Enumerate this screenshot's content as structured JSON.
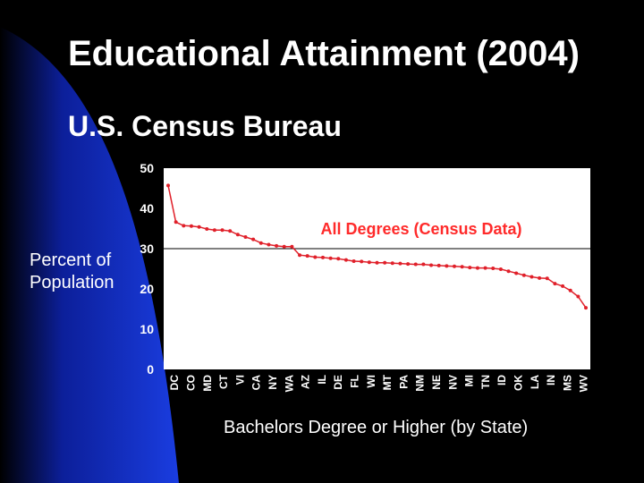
{
  "slide": {
    "title": "Educational Attainment (2004)",
    "subtitle": "U.S. Census Bureau"
  },
  "colors": {
    "background": "#000000",
    "swoosh_blue": "#1030d0",
    "plot_area": "#ffffff",
    "series": "#e0202a",
    "legend_text": "#ff2a2a",
    "axis_text": "#ffffff"
  },
  "chart_data": {
    "type": "line",
    "title": "",
    "ylabel": "Percent of Population",
    "xlabel": "Bachelors Degree or Higher (by State)",
    "ylim": [
      0,
      50
    ],
    "yticks": [
      0,
      10,
      20,
      30,
      40,
      50
    ],
    "grid": "horizontal at 30 only",
    "legend_position": "top-right inside plot",
    "x_tick_labels": [
      "DC",
      "CO",
      "MD",
      "CT",
      "VI",
      "CA",
      "NY",
      "WA",
      "AZ",
      "IL",
      "DE",
      "FL",
      "WI",
      "MT",
      "PA",
      "NM",
      "NE",
      "NV",
      "MI",
      "TN",
      "ID",
      "OK",
      "LA",
      "IN",
      "MS",
      "WV"
    ],
    "series": [
      {
        "name": "All Degrees (Census Data)",
        "values": [
          45.7,
          36.6,
          35.7,
          35.6,
          35.4,
          34.9,
          34.6,
          34.6,
          34.4,
          33.5,
          32.9,
          32.3,
          31.4,
          31.0,
          30.7,
          30.5,
          30.5,
          28.4,
          28.2,
          27.9,
          27.8,
          27.6,
          27.5,
          27.2,
          26.9,
          26.8,
          26.6,
          26.5,
          26.5,
          26.4,
          26.3,
          26.2,
          26.1,
          26.1,
          25.9,
          25.8,
          25.7,
          25.6,
          25.5,
          25.3,
          25.2,
          25.2,
          25.1,
          24.9,
          24.4,
          23.9,
          23.4,
          23.0,
          22.7,
          22.6,
          21.3,
          20.7,
          19.6,
          18.1,
          15.3
        ]
      }
    ]
  }
}
